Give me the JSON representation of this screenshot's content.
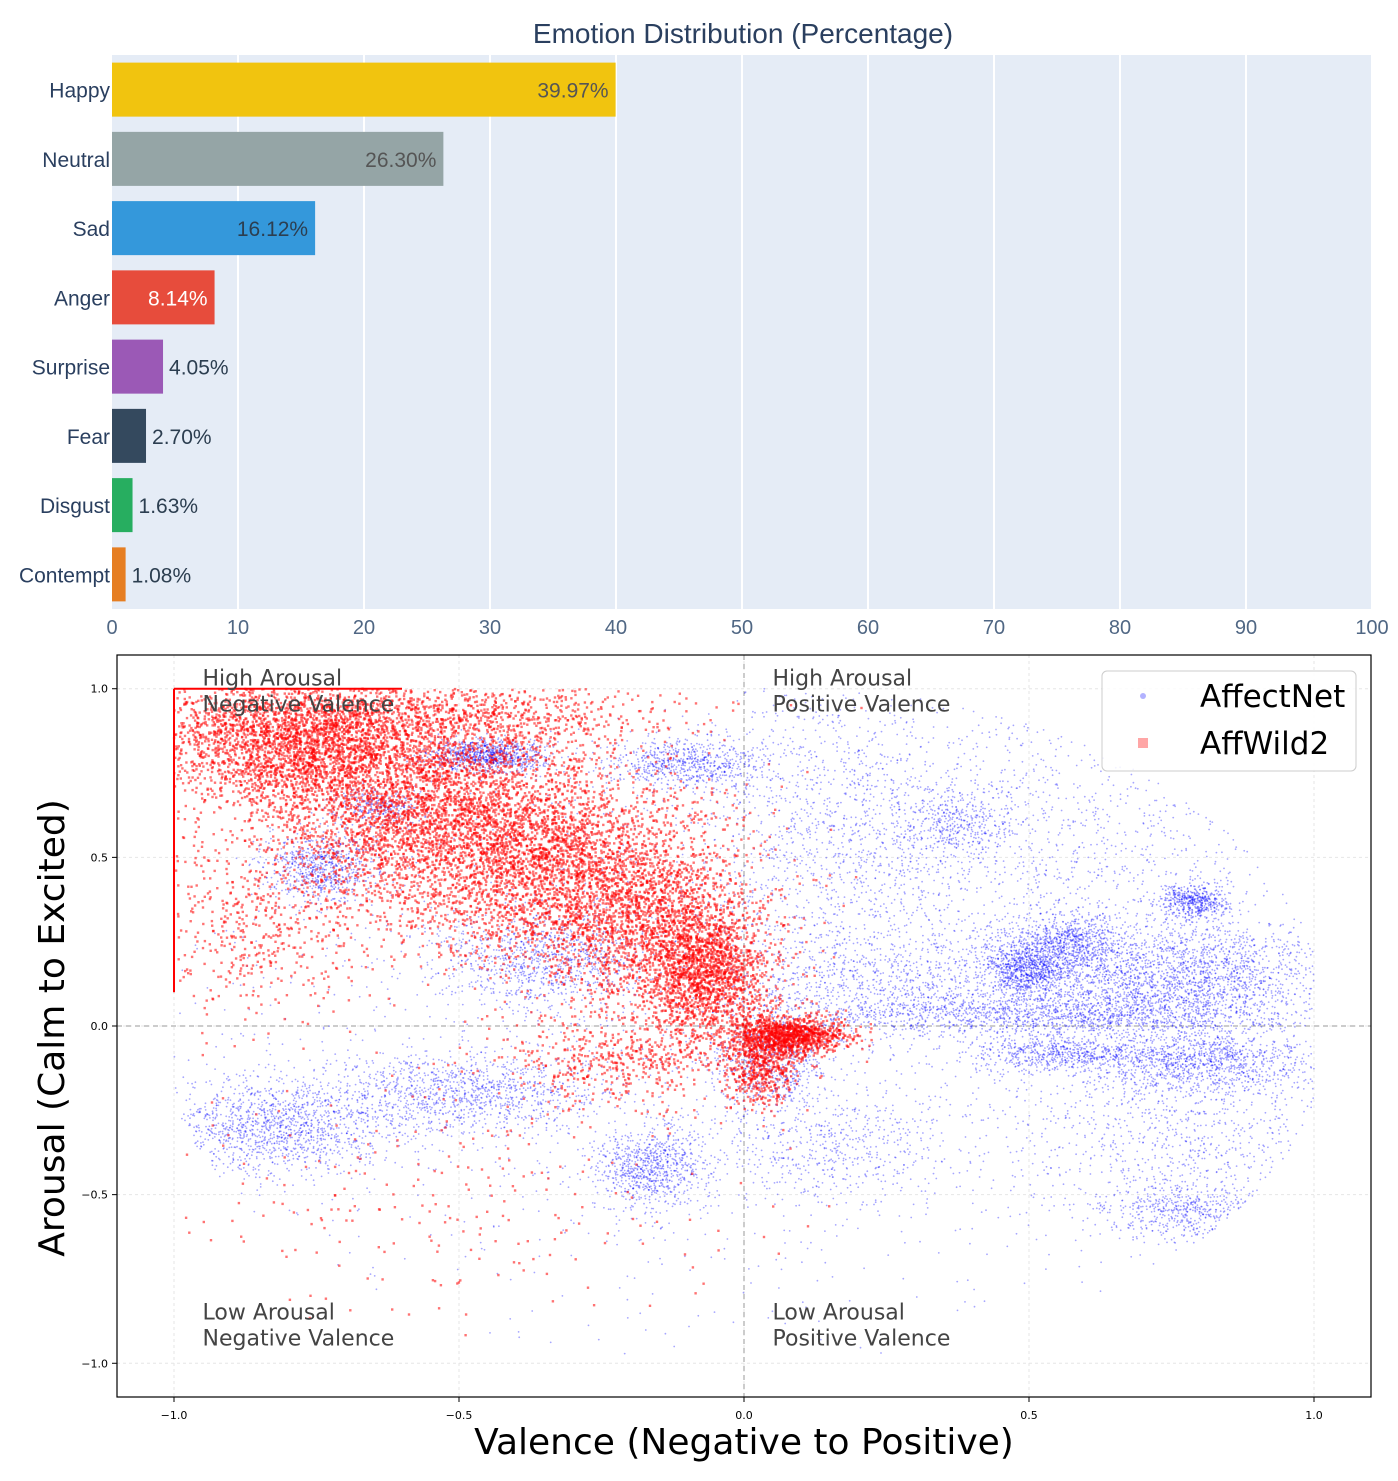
{
  "chart_data": [
    {
      "type": "bar",
      "orientation": "horizontal",
      "title": "Emotion Distribution (Percentage)",
      "categories": [
        "Happy",
        "Neutral",
        "Sad",
        "Anger",
        "Surprise",
        "Fear",
        "Disgust",
        "Contempt"
      ],
      "values": [
        39.97,
        26.3,
        16.12,
        8.14,
        4.05,
        2.7,
        1.63,
        1.08
      ],
      "value_labels": [
        "39.97%",
        "26.30%",
        "16.12%",
        "8.14%",
        "4.05%",
        "2.70%",
        "1.63%",
        "1.08%"
      ],
      "colors": [
        "#f1c40f",
        "#95a5a6",
        "#3498db",
        "#e74c3c",
        "#9b59b6",
        "#34495e",
        "#27ae60",
        "#e67e22"
      ],
      "label_colors": [
        "#555555",
        "#555555",
        "#2c3e50",
        "#ffffff",
        "#2c3e50",
        "#2c3e50",
        "#2c3e50",
        "#2c3e50"
      ],
      "xlim": [
        0,
        100
      ],
      "xticks": [
        0,
        10,
        20,
        30,
        40,
        50,
        60,
        70,
        80,
        90,
        100
      ],
      "xlabel": "",
      "ylabel": "",
      "grid": true,
      "background": "#e5ecf6"
    },
    {
      "type": "scatter",
      "title": "",
      "xlabel": "Valence (Negative to Positive)",
      "ylabel": "Arousal (Calm to Excited)",
      "xlim": [
        -1.1,
        1.1
      ],
      "ylim": [
        -1.1,
        1.1
      ],
      "xticks": [
        -1.0,
        -0.5,
        0.0,
        0.5,
        1.0
      ],
      "yticks": [
        -1.0,
        -0.5,
        0.0,
        0.5,
        1.0
      ],
      "tick_labels": [
        "−1.0",
        "−0.5",
        "0.0",
        "0.5",
        "1.0"
      ],
      "grid": true,
      "legend_position": "top-right",
      "series": [
        {
          "name": "AffectNet",
          "color": "#0000ff",
          "marker": "circle",
          "clusters": [
            {
              "x": -0.45,
              "y": 0.8,
              "sx": 0.05,
              "sy": 0.025,
              "n": 900
            },
            {
              "x": -0.1,
              "y": 0.78,
              "sx": 0.07,
              "sy": 0.04,
              "n": 700
            },
            {
              "x": -0.64,
              "y": 0.65,
              "sx": 0.04,
              "sy": 0.03,
              "n": 300
            },
            {
              "x": -0.74,
              "y": 0.47,
              "sx": 0.05,
              "sy": 0.05,
              "n": 700
            },
            {
              "x": -0.35,
              "y": 0.2,
              "sx": 0.09,
              "sy": 0.07,
              "n": 900
            },
            {
              "x": -0.82,
              "y": -0.3,
              "sx": 0.1,
              "sy": 0.07,
              "n": 1300
            },
            {
              "x": -0.5,
              "y": -0.2,
              "sx": 0.13,
              "sy": 0.06,
              "n": 1100
            },
            {
              "x": -0.17,
              "y": -0.42,
              "sx": 0.05,
              "sy": 0.06,
              "n": 800
            },
            {
              "x": 0.15,
              "y": -0.36,
              "sx": 0.1,
              "sy": 0.08,
              "n": 500
            },
            {
              "x": 0.15,
              "y": 0.6,
              "sx": 0.12,
              "sy": 0.2,
              "n": 900
            },
            {
              "x": 0.37,
              "y": 0.6,
              "sx": 0.05,
              "sy": 0.05,
              "n": 350
            },
            {
              "x": 0.5,
              "y": 0.55,
              "sx": 0.25,
              "sy": 0.25,
              "n": 1500
            },
            {
              "x": 0.5,
              "y": 0.18,
              "sx": 0.04,
              "sy": 0.05,
              "n": 1000
            },
            {
              "x": 0.58,
              "y": 0.25,
              "sx": 0.04,
              "sy": 0.04,
              "n": 500
            },
            {
              "x": 0.79,
              "y": 0.37,
              "sx": 0.03,
              "sy": 0.025,
              "n": 500
            },
            {
              "x": 0.75,
              "y": 0.15,
              "sx": 0.14,
              "sy": 0.08,
              "n": 2300
            },
            {
              "x": 0.55,
              "y": 0.03,
              "sx": 0.2,
              "sy": 0.03,
              "n": 1200
            },
            {
              "x": 0.55,
              "y": -0.08,
              "sx": 0.08,
              "sy": 0.03,
              "n": 600
            },
            {
              "x": 0.8,
              "y": -0.1,
              "sx": 0.1,
              "sy": 0.05,
              "n": 1100
            },
            {
              "x": 0.78,
              "y": -0.55,
              "sx": 0.08,
              "sy": 0.04,
              "n": 500
            },
            {
              "x": 0.75,
              "y": -0.3,
              "sx": 0.15,
              "sy": 0.15,
              "n": 900
            },
            {
              "x": 0.25,
              "y": 0.12,
              "sx": 0.15,
              "sy": 0.08,
              "n": 900
            },
            {
              "x": 0.05,
              "y": -0.1,
              "sx": 0.05,
              "sy": 0.07,
              "n": 600
            },
            {
              "x": 0.0,
              "y": 0.0,
              "sx": 0.6,
              "sy": 0.45,
              "n": 2500
            }
          ]
        },
        {
          "name": "AffWild2",
          "color": "#ff0000",
          "marker": "square",
          "clusters": [
            {
              "x": -0.8,
              "y": 0.85,
              "sx": 0.12,
              "sy": 0.1,
              "n": 2500
            },
            {
              "x": -0.6,
              "y": 0.7,
              "sx": 0.15,
              "sy": 0.15,
              "n": 2500
            },
            {
              "x": -0.45,
              "y": 0.55,
              "sx": 0.15,
              "sy": 0.15,
              "n": 2200
            },
            {
              "x": -0.3,
              "y": 0.45,
              "sx": 0.14,
              "sy": 0.15,
              "n": 1800
            },
            {
              "x": -0.15,
              "y": 0.3,
              "sx": 0.1,
              "sy": 0.13,
              "n": 1500
            },
            {
              "x": -0.07,
              "y": 0.15,
              "sx": 0.06,
              "sy": 0.1,
              "n": 1500
            },
            {
              "x": -0.5,
              "y": 0.92,
              "sx": 0.2,
              "sy": 0.05,
              "n": 800
            },
            {
              "x": -0.85,
              "y": 0.3,
              "sx": 0.1,
              "sy": 0.15,
              "n": 500
            },
            {
              "x": 0.08,
              "y": -0.03,
              "sx": 0.05,
              "sy": 0.03,
              "n": 1100
            },
            {
              "x": 0.03,
              "y": -0.12,
              "sx": 0.03,
              "sy": 0.07,
              "n": 500
            },
            {
              "x": -0.2,
              "y": -0.1,
              "sx": 0.1,
              "sy": 0.07,
              "n": 500
            },
            {
              "x": -0.55,
              "y": -0.5,
              "sx": 0.3,
              "sy": 0.2,
              "n": 250
            }
          ]
        }
      ],
      "quadrant_labels": [
        {
          "text": "High Arousal\nNegative Valence",
          "x": -0.95,
          "y": 1.01
        },
        {
          "text": "High Arousal\nPositive Valence",
          "x": 0.05,
          "y": 1.01
        },
        {
          "text": "Low Arousal\nNegative Valence",
          "x": -0.95,
          "y": -0.87
        },
        {
          "text": "Low Arousal\nPositive Valence",
          "x": 0.05,
          "y": -0.87
        }
      ]
    }
  ]
}
